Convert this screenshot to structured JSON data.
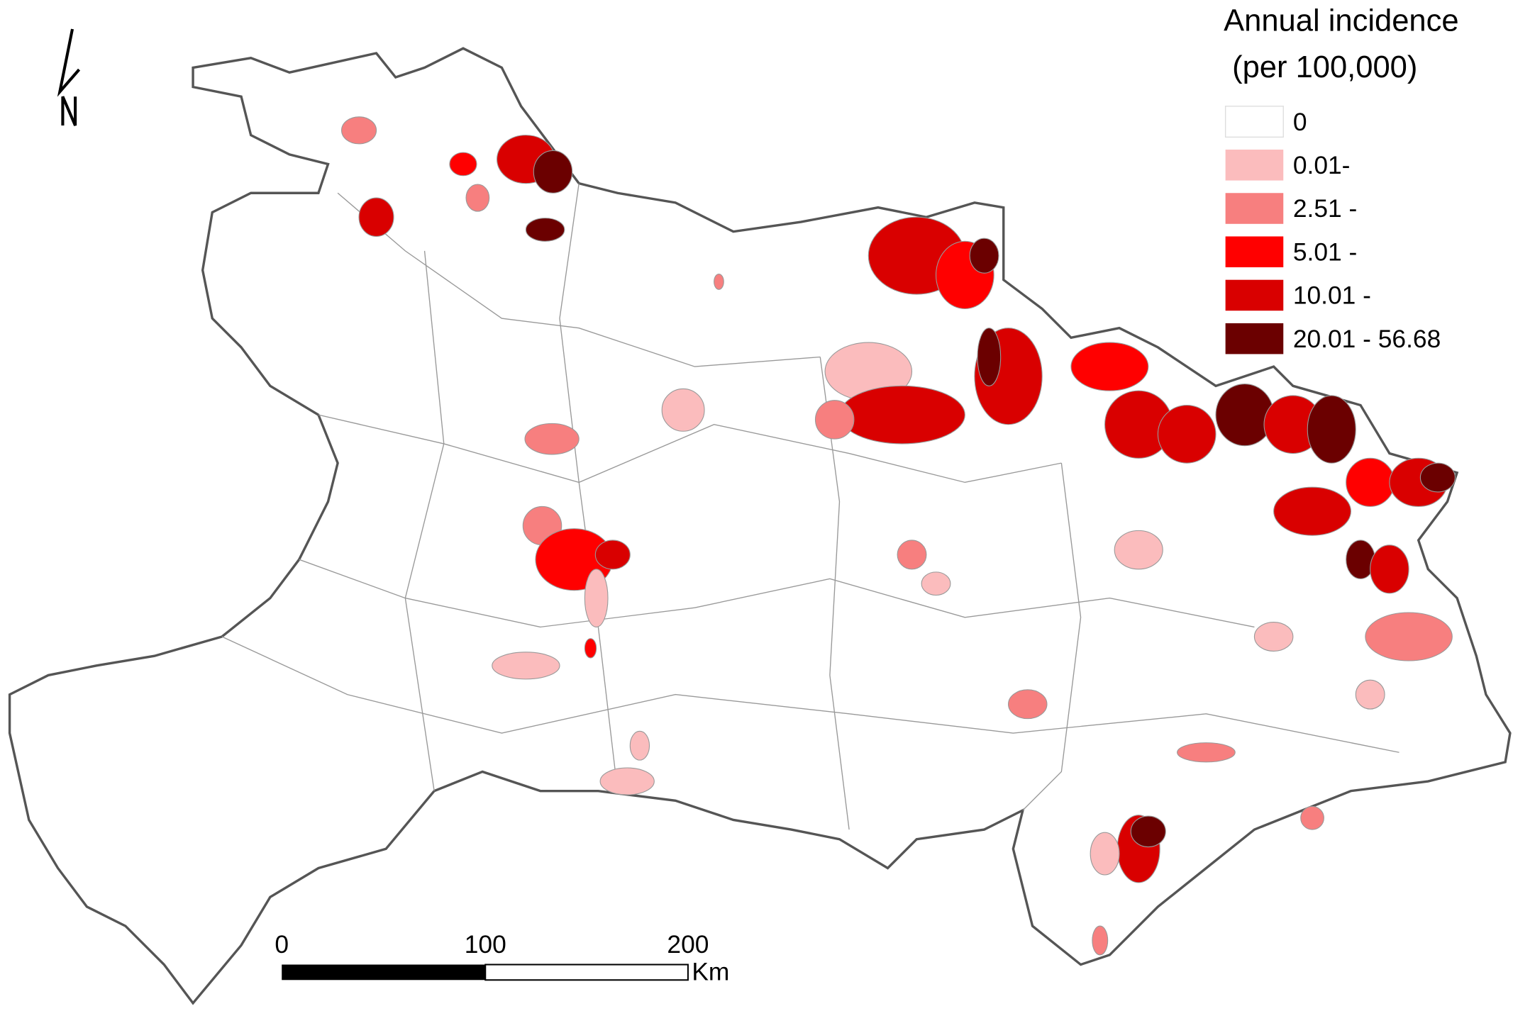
{
  "legend": {
    "title": [
      "Annual incidence",
      "(per 100,000)"
    ],
    "classes": [
      {
        "label": "0",
        "color": "#ffffff"
      },
      {
        "label": "0.01-",
        "color": "#fbbcbd"
      },
      {
        "label": "2.51 -",
        "color": "#f77f7f"
      },
      {
        "label": "5.01 -",
        "color": "#ff0000"
      },
      {
        "label": "10.01 -",
        "color": "#d90000"
      },
      {
        "label": "20.01 - 56.68",
        "color": "#6b0000"
      }
    ]
  },
  "scale_bar": {
    "labels": [
      "0",
      "100",
      "200"
    ],
    "unit": "Km"
  },
  "north_arrow": "N"
}
